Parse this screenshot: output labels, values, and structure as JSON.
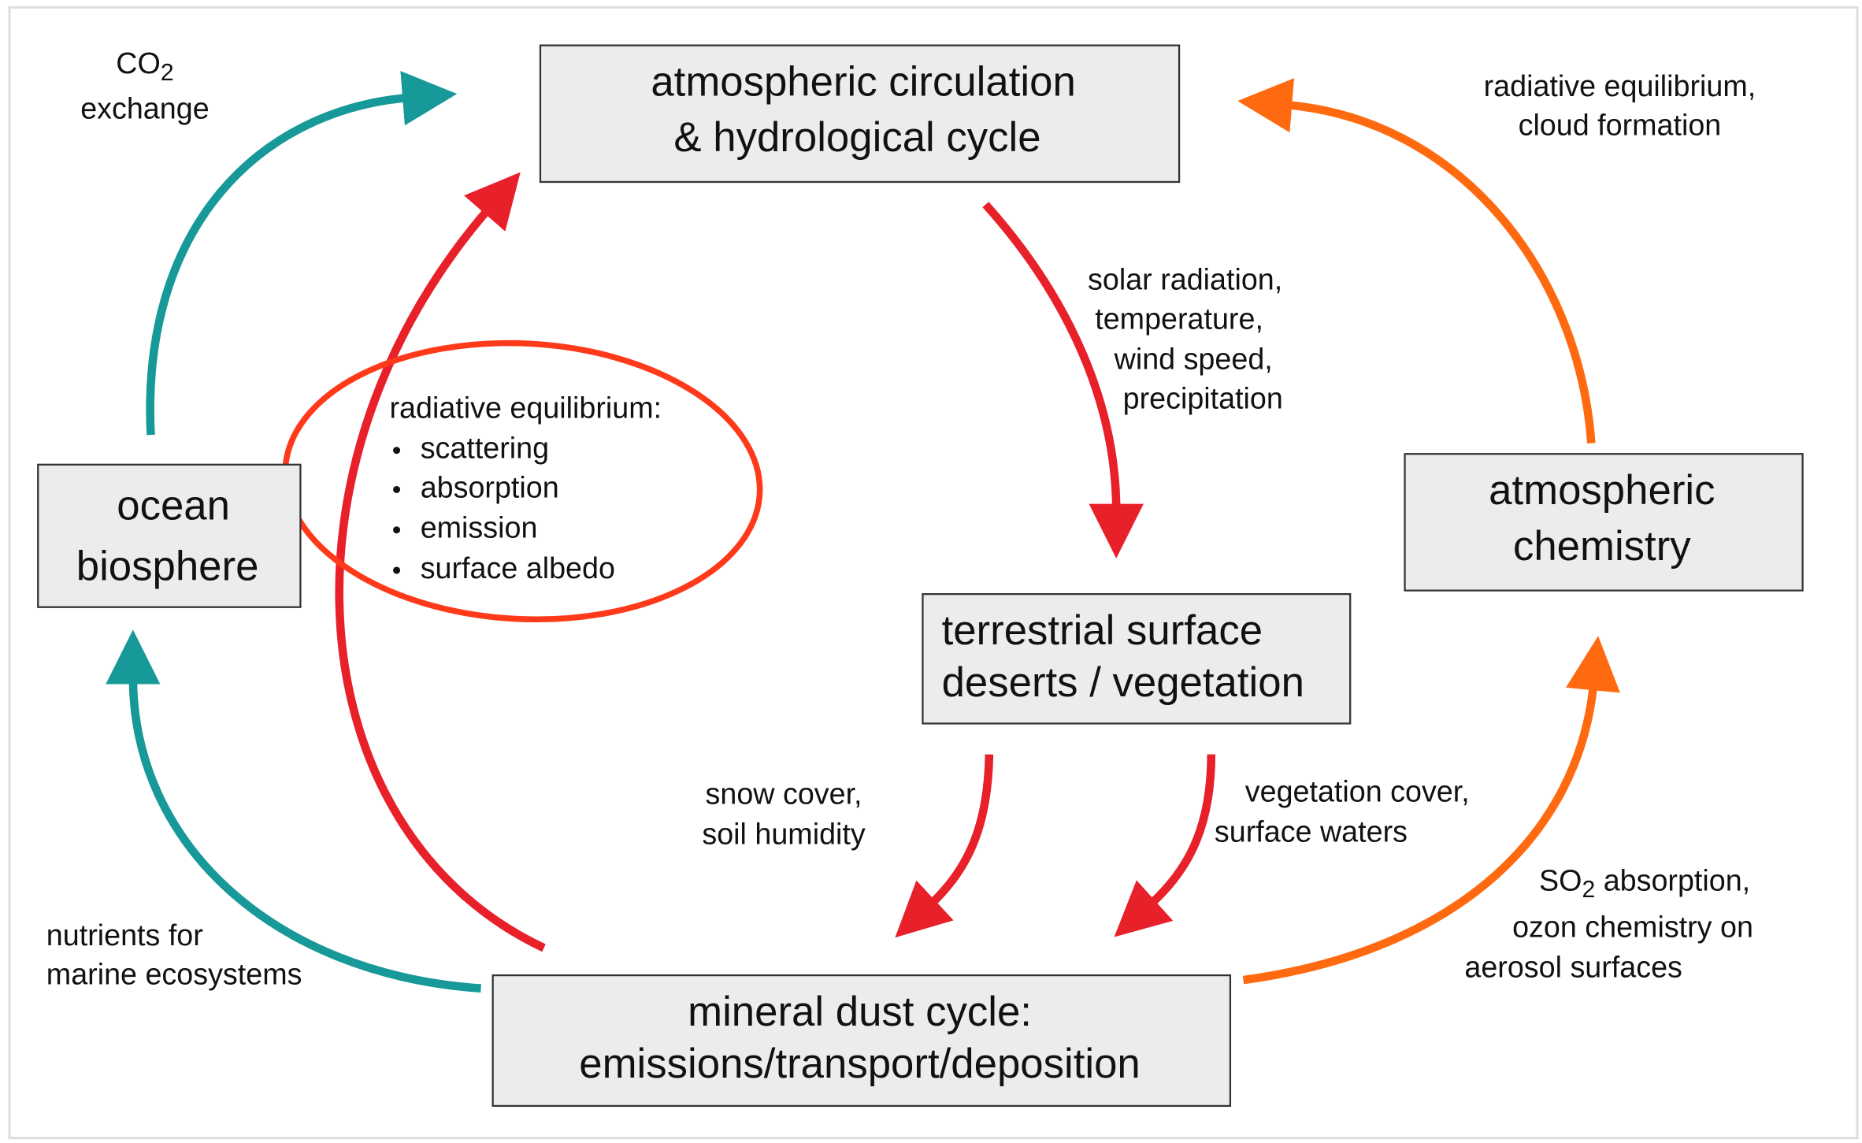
{
  "nodes": [
    {
      "label": [
        "atmospheric circulation",
        "& hydrological cycle"
      ]
    },
    {
      "label": [
        "ocean",
        "biosphere"
      ]
    },
    {
      "label": [
        "terrestrial surface",
        "deserts / vegetation"
      ]
    },
    {
      "label": [
        "atmospheric",
        "chemistry"
      ]
    },
    {
      "label": [
        "mineral dust cycle:",
        "emissions/transport/deposition"
      ]
    }
  ],
  "edge_labels": {
    "co2_exchange": {
      "lines": [
        {
          "text": "CO",
          "sub": "2"
        },
        "exchange"
      ]
    },
    "cloud": {
      "lines": [
        "radiative equilibrium,",
        "cloud formation"
      ]
    },
    "solar": {
      "lines": [
        "solar radiation,",
        "temperature,",
        "wind speed,",
        "precipitation"
      ]
    },
    "snow": {
      "lines": [
        "snow cover,",
        "soil humidity"
      ]
    },
    "vegetation": {
      "lines": [
        "vegetation cover,",
        "surface waters"
      ]
    },
    "so2": {
      "lines": [
        {
          "text": "SO",
          "sub": "2",
          "rest": " absorption,"
        },
        "ozon chemistry on",
        "aerosol surfaces"
      ]
    },
    "nutrients": {
      "lines": [
        "nutrients for",
        "marine ecosystems"
      ]
    }
  },
  "highlight": {
    "title": "radiative equilibrium:",
    "items": [
      "scattering",
      "absorption",
      "emission",
      "surface albedo"
    ]
  }
}
